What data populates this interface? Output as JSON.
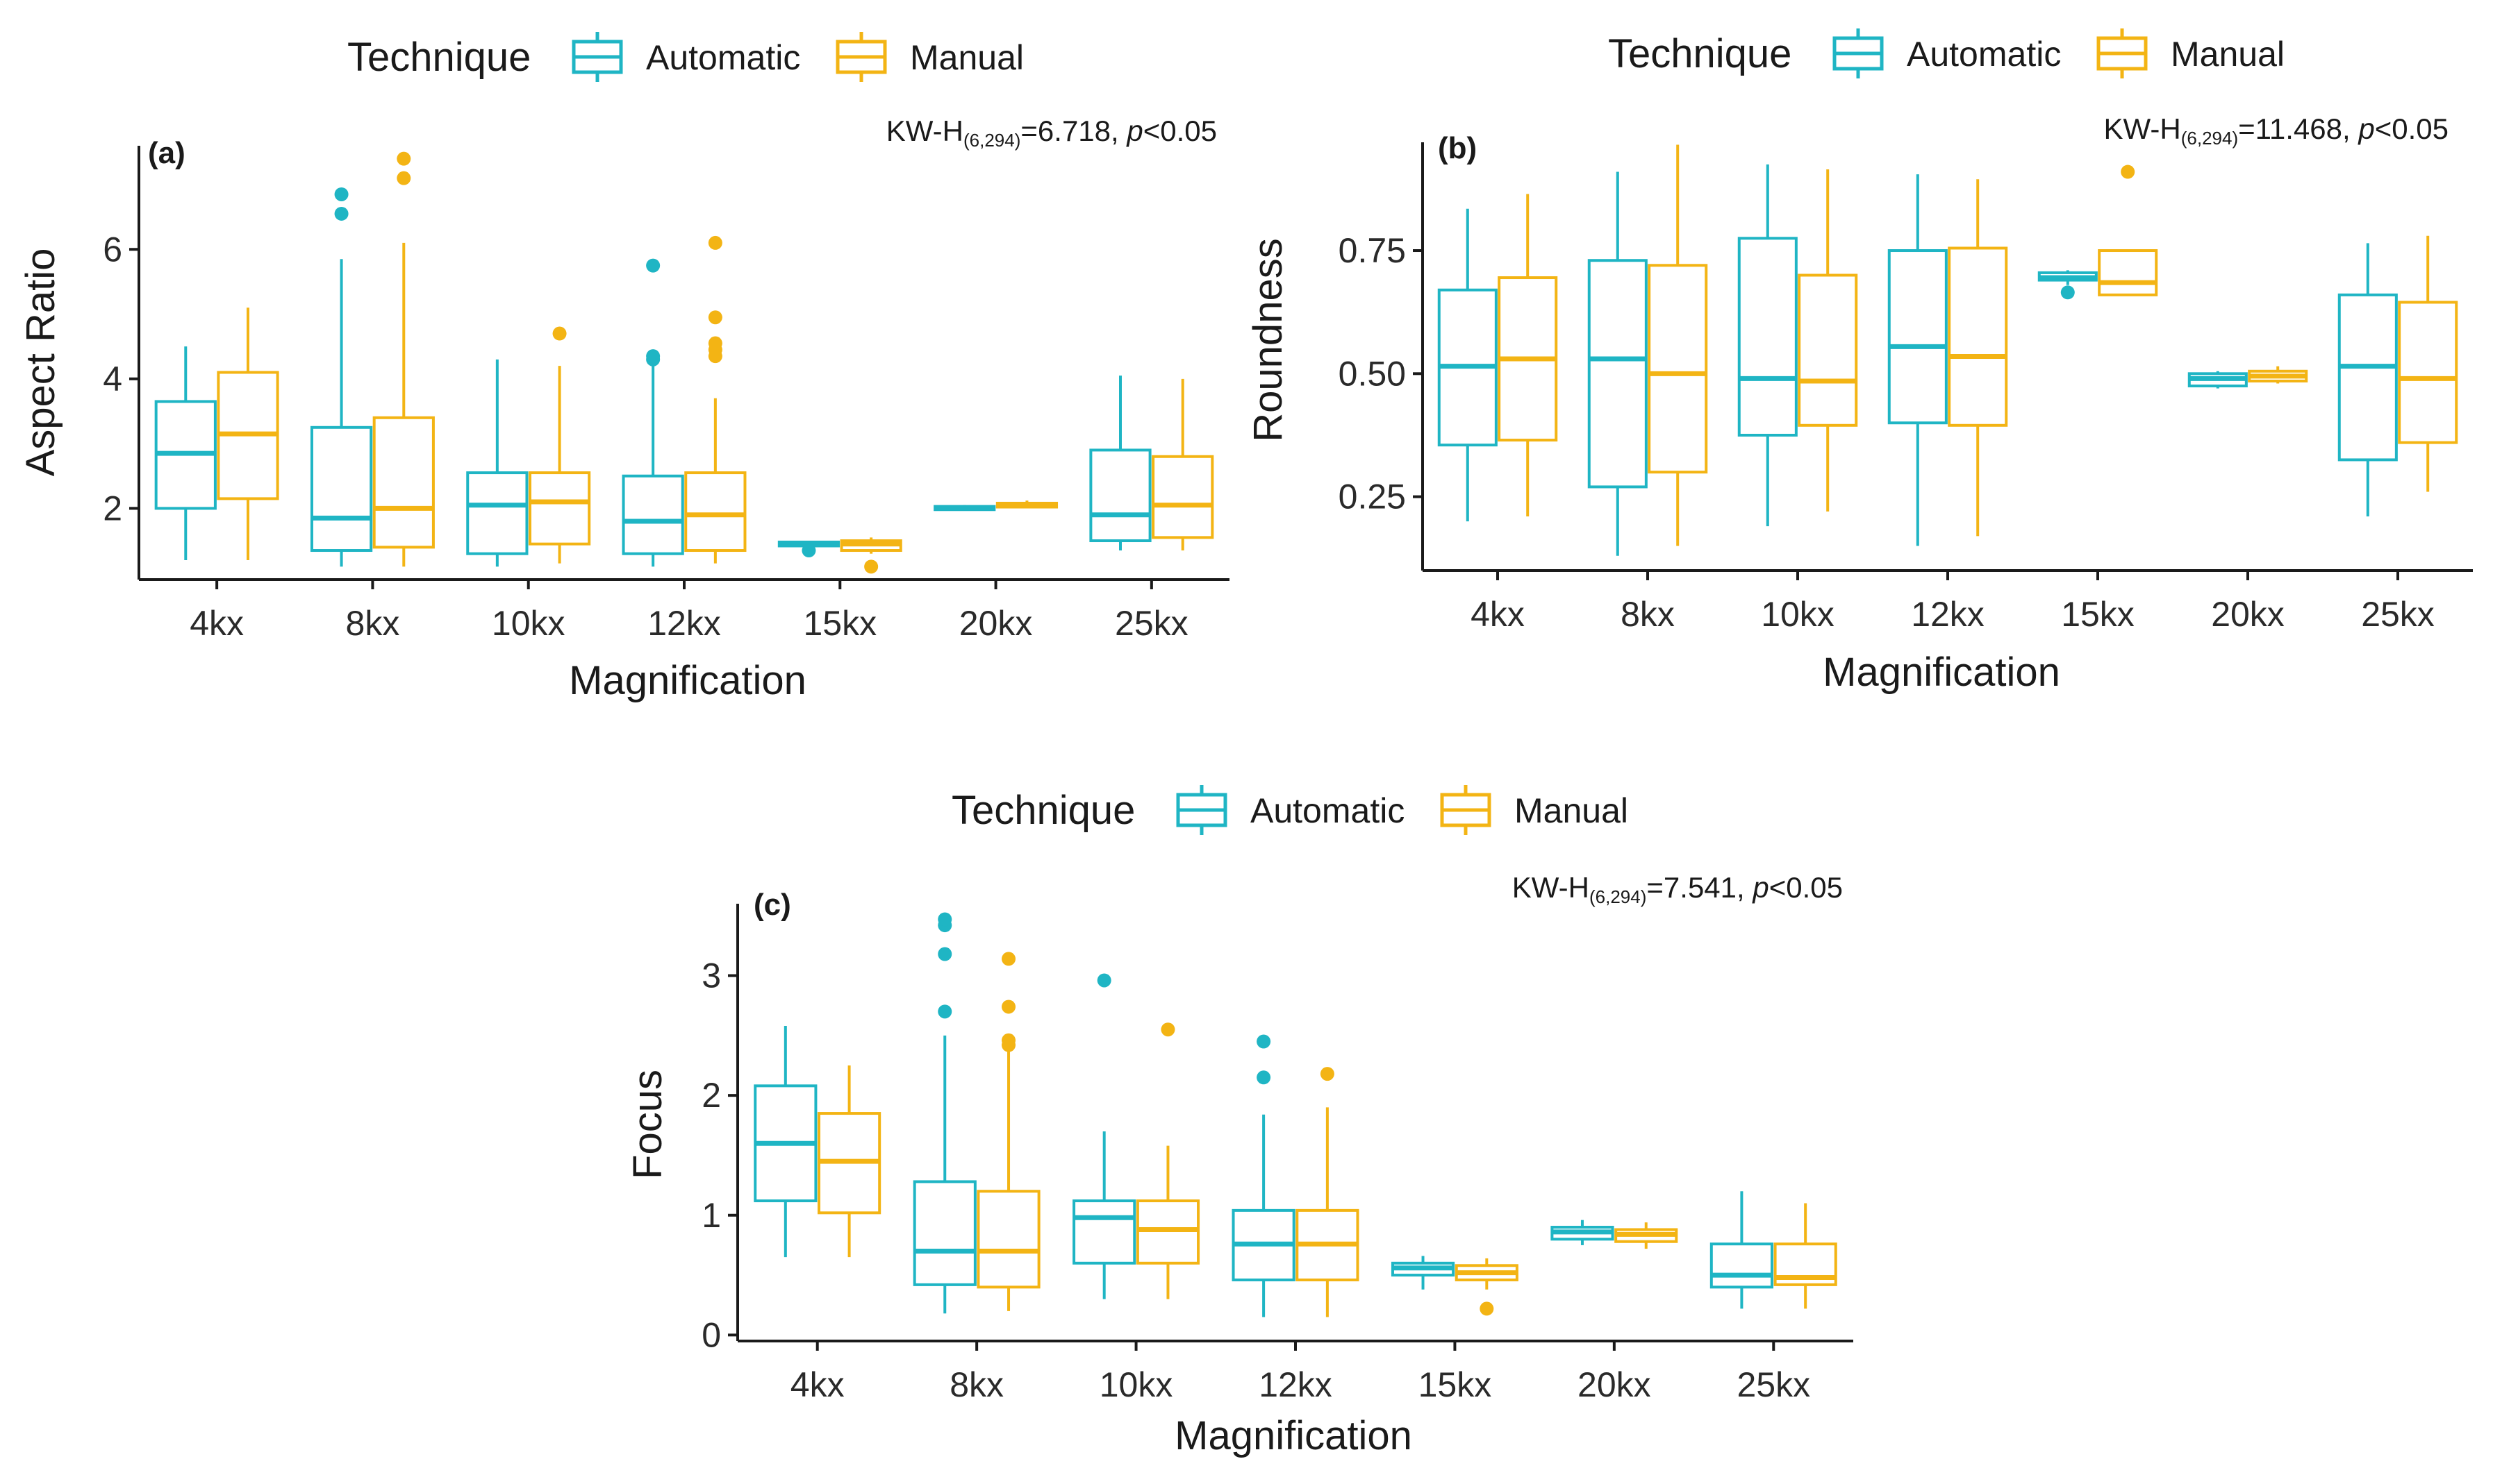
{
  "colors": {
    "automatic": "#1FB5C4",
    "manual": "#F3B414",
    "axis": "#1a1a1a"
  },
  "chart_data": [
    {
      "type": "boxplot",
      "panel": "(a)",
      "title": "",
      "xlabel": "Magnification",
      "ylabel": "Aspect Ratio",
      "ylim": [
        0.9,
        7.6
      ],
      "yticks": [
        2,
        4,
        6
      ],
      "categories": [
        "4kx",
        "8kx",
        "10kx",
        "12kx",
        "15kx",
        "20kx",
        "25kx"
      ],
      "legend": {
        "title": "Technique",
        "items": [
          "Automatic",
          "Manual"
        ],
        "position": "top"
      },
      "annotation": {
        "prefix": "KW-H",
        "sub": "(6,294)",
        "stat": "=6.718, ",
        "p_label": "p",
        "p_val": "<0.05"
      },
      "series": [
        {
          "name": "Automatic",
          "boxes": [
            {
              "min": 1.2,
              "q1": 2.0,
              "median": 2.85,
              "q3": 3.65,
              "max": 4.5,
              "outliers": []
            },
            {
              "min": 1.1,
              "q1": 1.35,
              "median": 1.85,
              "q3": 3.25,
              "max": 5.85,
              "outliers": [
                6.55,
                6.85
              ]
            },
            {
              "min": 1.1,
              "q1": 1.3,
              "median": 2.05,
              "q3": 2.55,
              "max": 4.3,
              "outliers": []
            },
            {
              "min": 1.1,
              "q1": 1.3,
              "median": 1.8,
              "q3": 2.5,
              "max": 4.2,
              "outliers": [
                4.3,
                4.35,
                5.75
              ]
            },
            {
              "min": 1.4,
              "q1": 1.42,
              "median": 1.45,
              "q3": 1.48,
              "max": 1.5,
              "outliers": [
                1.35
              ]
            },
            {
              "min": 1.97,
              "q1": 1.98,
              "median": 2.0,
              "q3": 2.03,
              "max": 2.05,
              "outliers": []
            },
            {
              "min": 1.35,
              "q1": 1.5,
              "median": 1.9,
              "q3": 2.9,
              "max": 4.05,
              "outliers": []
            }
          ]
        },
        {
          "name": "Manual",
          "boxes": [
            {
              "min": 1.2,
              "q1": 2.15,
              "median": 3.15,
              "q3": 4.1,
              "max": 5.1,
              "outliers": []
            },
            {
              "min": 1.1,
              "q1": 1.4,
              "median": 2.0,
              "q3": 3.4,
              "max": 6.1,
              "outliers": [
                7.1,
                7.4
              ]
            },
            {
              "min": 1.15,
              "q1": 1.45,
              "median": 2.1,
              "q3": 2.55,
              "max": 4.2,
              "outliers": [
                4.7
              ]
            },
            {
              "min": 1.15,
              "q1": 1.35,
              "median": 1.9,
              "q3": 2.55,
              "max": 3.7,
              "outliers": [
                4.35,
                4.45,
                4.55,
                4.95,
                6.1
              ]
            },
            {
              "min": 1.3,
              "q1": 1.35,
              "median": 1.45,
              "q3": 1.5,
              "max": 1.55,
              "outliers": [
                1.1
              ]
            },
            {
              "min": 2.0,
              "q1": 2.02,
              "median": 2.05,
              "q3": 2.08,
              "max": 2.12,
              "outliers": []
            },
            {
              "min": 1.35,
              "q1": 1.55,
              "median": 2.05,
              "q3": 2.8,
              "max": 4.0,
              "outliers": []
            }
          ]
        }
      ]
    },
    {
      "type": "boxplot",
      "panel": "(b)",
      "title": "",
      "xlabel": "Magnification",
      "ylabel": "Roundness",
      "ylim": [
        0.1,
        0.97
      ],
      "yticks": [
        0.25,
        0.5,
        0.75
      ],
      "ytick_labels": [
        "0.25",
        "0.50",
        "0.75"
      ],
      "categories": [
        "4kx",
        "8kx",
        "10kx",
        "12kx",
        "15kx",
        "20kx",
        "25kx"
      ],
      "legend": {
        "title": "Technique",
        "items": [
          "Automatic",
          "Manual"
        ],
        "position": "top"
      },
      "annotation": {
        "prefix": "KW-H",
        "sub": "(6,294)",
        "stat": "=11.468, ",
        "p_label": "p",
        "p_val": "<0.05"
      },
      "series": [
        {
          "name": "Automatic",
          "boxes": [
            {
              "min": 0.2,
              "q1": 0.355,
              "median": 0.515,
              "q3": 0.67,
              "max": 0.835,
              "outliers": []
            },
            {
              "min": 0.13,
              "q1": 0.27,
              "median": 0.53,
              "q3": 0.73,
              "max": 0.91,
              "outliers": []
            },
            {
              "min": 0.19,
              "q1": 0.375,
              "median": 0.49,
              "q3": 0.775,
              "max": 0.925,
              "outliers": []
            },
            {
              "min": 0.15,
              "q1": 0.4,
              "median": 0.555,
              "q3": 0.75,
              "max": 0.905,
              "outliers": []
            },
            {
              "min": 0.68,
              "q1": 0.69,
              "median": 0.695,
              "q3": 0.705,
              "max": 0.71,
              "outliers": [
                0.665
              ]
            },
            {
              "min": 0.47,
              "q1": 0.475,
              "median": 0.49,
              "q3": 0.5,
              "max": 0.505,
              "outliers": []
            },
            {
              "min": 0.21,
              "q1": 0.325,
              "median": 0.515,
              "q3": 0.66,
              "max": 0.765,
              "outliers": []
            }
          ]
        },
        {
          "name": "Manual",
          "boxes": [
            {
              "min": 0.21,
              "q1": 0.365,
              "median": 0.53,
              "q3": 0.695,
              "max": 0.865,
              "outliers": []
            },
            {
              "min": 0.15,
              "q1": 0.3,
              "median": 0.5,
              "q3": 0.72,
              "max": 0.965,
              "outliers": []
            },
            {
              "min": 0.22,
              "q1": 0.395,
              "median": 0.485,
              "q3": 0.7,
              "max": 0.915,
              "outliers": []
            },
            {
              "min": 0.17,
              "q1": 0.395,
              "median": 0.535,
              "q3": 0.755,
              "max": 0.895,
              "outliers": []
            },
            {
              "min": 0.66,
              "q1": 0.66,
              "median": 0.685,
              "q3": 0.75,
              "max": 0.75,
              "outliers": [
                0.91
              ]
            },
            {
              "min": 0.48,
              "q1": 0.485,
              "median": 0.495,
              "q3": 0.505,
              "max": 0.515,
              "outliers": []
            },
            {
              "min": 0.26,
              "q1": 0.36,
              "median": 0.49,
              "q3": 0.645,
              "max": 0.78,
              "outliers": []
            }
          ]
        }
      ]
    },
    {
      "type": "boxplot",
      "panel": "(c)",
      "title": "",
      "xlabel": "Magnification",
      "ylabel": "Focus",
      "ylim": [
        -0.05,
        3.6
      ],
      "yticks": [
        0,
        1,
        2,
        3
      ],
      "categories": [
        "4kx",
        "8kx",
        "10kx",
        "12kx",
        "15kx",
        "20kx",
        "25kx"
      ],
      "legend": {
        "title": "Technique",
        "items": [
          "Automatic",
          "Manual"
        ],
        "position": "top"
      },
      "annotation": {
        "prefix": "KW-H",
        "sub": "(6,294)",
        "stat": "=7.541, ",
        "p_label": "p",
        "p_val": "<0.05"
      },
      "series": [
        {
          "name": "Automatic",
          "boxes": [
            {
              "min": 0.65,
              "q1": 1.12,
              "median": 1.6,
              "q3": 2.08,
              "max": 2.58,
              "outliers": []
            },
            {
              "min": 0.18,
              "q1": 0.42,
              "median": 0.7,
              "q3": 1.28,
              "max": 2.5,
              "outliers": [
                2.7,
                3.18,
                3.42,
                3.47
              ]
            },
            {
              "min": 0.3,
              "q1": 0.6,
              "median": 0.98,
              "q3": 1.12,
              "max": 1.7,
              "outliers": [
                2.96
              ]
            },
            {
              "min": 0.15,
              "q1": 0.46,
              "median": 0.76,
              "q3": 1.04,
              "max": 1.84,
              "outliers": [
                2.15,
                2.45
              ]
            },
            {
              "min": 0.38,
              "q1": 0.5,
              "median": 0.56,
              "q3": 0.6,
              "max": 0.66,
              "outliers": []
            },
            {
              "min": 0.75,
              "q1": 0.8,
              "median": 0.86,
              "q3": 0.9,
              "max": 0.96,
              "outliers": []
            },
            {
              "min": 0.22,
              "q1": 0.4,
              "median": 0.5,
              "q3": 0.76,
              "max": 1.2,
              "outliers": []
            }
          ]
        },
        {
          "name": "Manual",
          "boxes": [
            {
              "min": 0.65,
              "q1": 1.02,
              "median": 1.45,
              "q3": 1.85,
              "max": 2.25,
              "outliers": []
            },
            {
              "min": 0.2,
              "q1": 0.4,
              "median": 0.7,
              "q3": 1.2,
              "max": 2.38,
              "outliers": [
                2.42,
                2.46,
                2.74,
                3.14
              ]
            },
            {
              "min": 0.3,
              "q1": 0.6,
              "median": 0.88,
              "q3": 1.12,
              "max": 1.58,
              "outliers": [
                2.55
              ]
            },
            {
              "min": 0.15,
              "q1": 0.46,
              "median": 0.76,
              "q3": 1.04,
              "max": 1.9,
              "outliers": [
                2.18
              ]
            },
            {
              "min": 0.38,
              "q1": 0.46,
              "median": 0.52,
              "q3": 0.58,
              "max": 0.64,
              "outliers": [
                0.22
              ]
            },
            {
              "min": 0.72,
              "q1": 0.78,
              "median": 0.84,
              "q3": 0.88,
              "max": 0.94,
              "outliers": []
            },
            {
              "min": 0.22,
              "q1": 0.42,
              "median": 0.48,
              "q3": 0.76,
              "max": 1.1,
              "outliers": []
            }
          ]
        }
      ]
    }
  ]
}
